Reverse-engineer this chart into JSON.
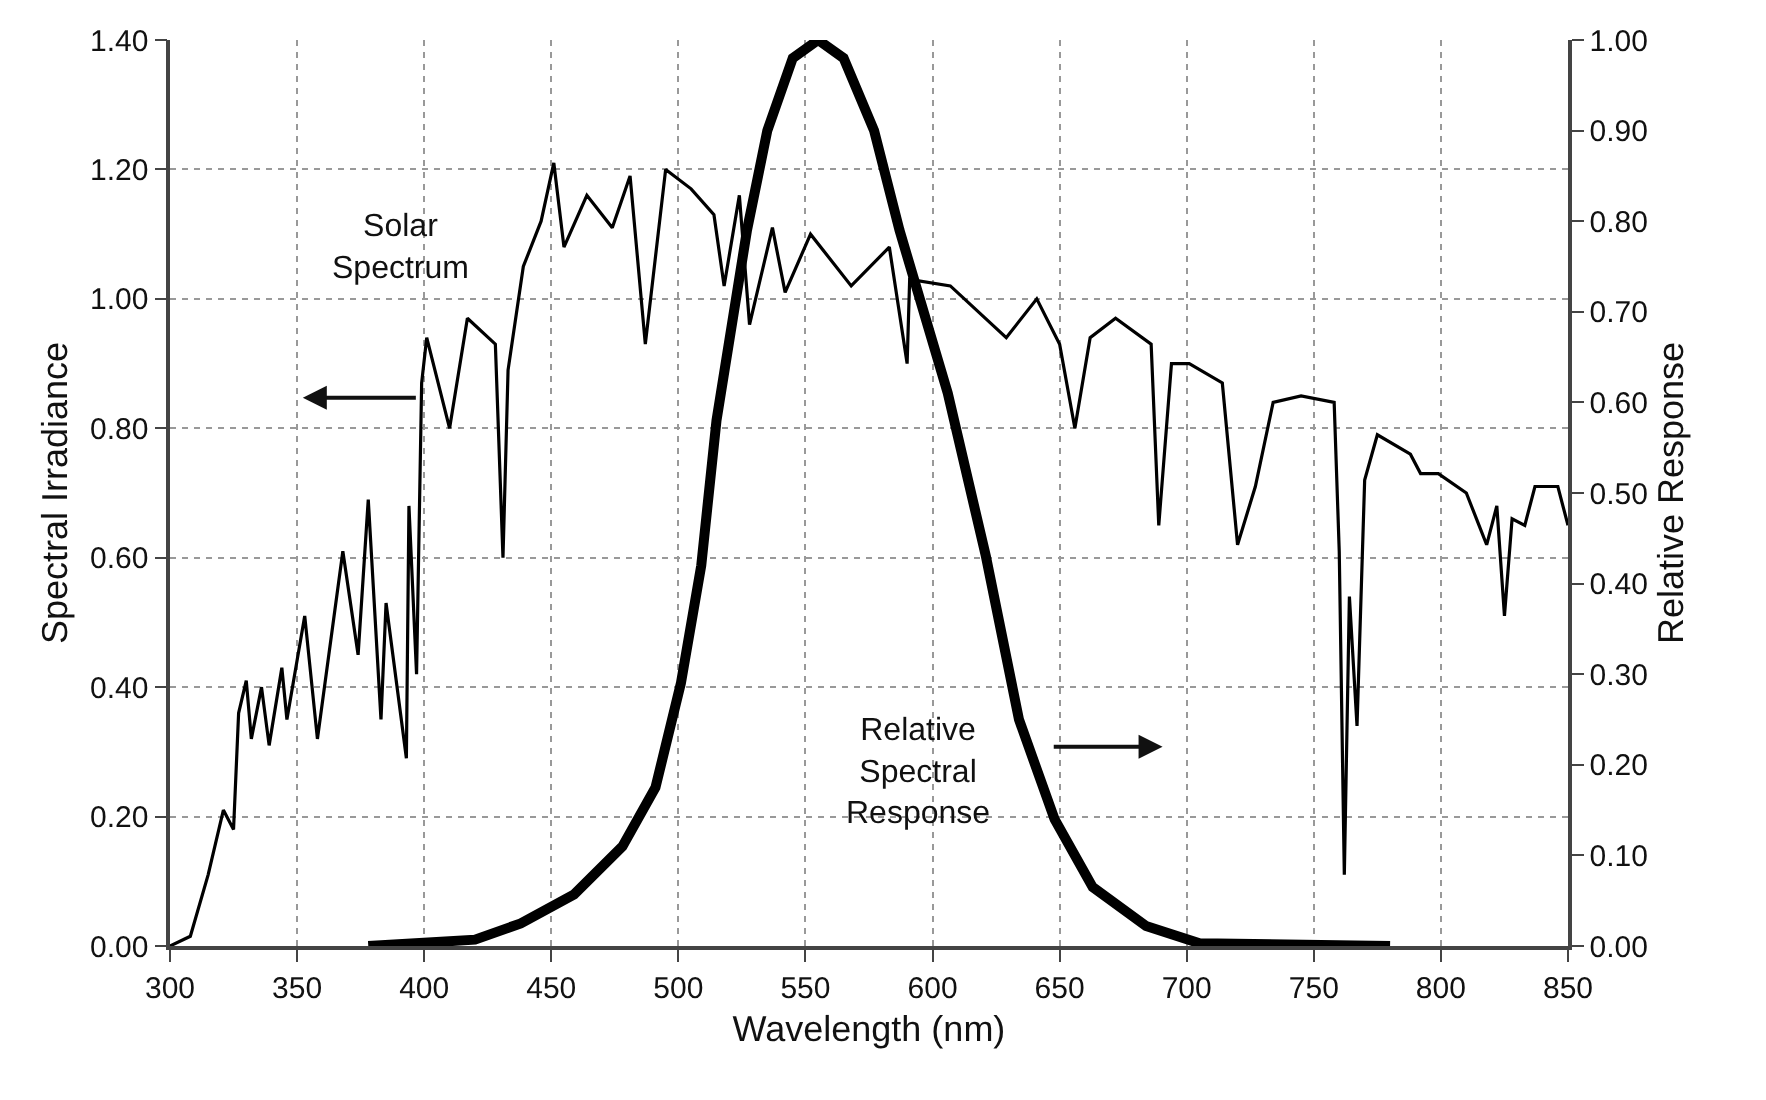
{
  "chart_data": {
    "type": "line",
    "xlabel": "Wavelength (nm)",
    "ylabel": "Spectral Irradiance",
    "y2label": "Relative Response",
    "xlim": [
      300,
      850
    ],
    "xticks": [
      300,
      350,
      400,
      450,
      500,
      550,
      600,
      650,
      700,
      750,
      800,
      850
    ],
    "ylim": [
      0,
      1.4
    ],
    "yticks": [
      {
        "value": 0,
        "label": "0.00"
      },
      {
        "value": 0.2,
        "label": "0.20"
      },
      {
        "value": 0.4,
        "label": "0.40"
      },
      {
        "value": 0.6,
        "label": "0.60"
      },
      {
        "value": 0.8,
        "label": "0.80"
      },
      {
        "value": 1.0,
        "label": "1.00"
      },
      {
        "value": 1.2,
        "label": "1.20"
      },
      {
        "value": 1.4,
        "label": "1.40"
      }
    ],
    "y2lim": [
      0,
      1.0
    ],
    "y2ticks": [
      {
        "value": 0,
        "label": "0.00"
      },
      {
        "value": 0.1,
        "label": "0.10"
      },
      {
        "value": 0.2,
        "label": "0.20"
      },
      {
        "value": 0.3,
        "label": "0.30"
      },
      {
        "value": 0.4,
        "label": "0.40"
      },
      {
        "value": 0.5,
        "label": "0.50"
      },
      {
        "value": 0.6,
        "label": "0.60"
      },
      {
        "value": 0.7,
        "label": "0.70"
      },
      {
        "value": 0.8,
        "label": "0.80"
      },
      {
        "value": 0.9,
        "label": "0.90"
      },
      {
        "value": 1.0,
        "label": "1.00"
      }
    ],
    "grid": true,
    "marker": "none",
    "line_style": "solid",
    "annotations": [
      "Solar\nSpectrum",
      "Relative\nSpectral\nResponse"
    ],
    "series": [
      {
        "color": "#000000",
        "x": [
          300,
          308,
          315,
          321,
          325,
          327,
          330,
          332,
          336,
          339,
          344,
          346,
          353,
          358,
          368,
          374,
          378,
          383,
          385,
          393,
          394,
          397,
          399,
          401,
          410,
          417,
          428,
          431,
          433,
          439,
          446,
          451,
          455,
          464,
          474,
          481,
          487,
          495,
          505,
          514,
          518,
          524,
          528,
          537,
          542,
          552,
          568,
          583,
          590,
          591,
          607,
          629,
          641,
          650,
          656,
          662,
          672,
          686,
          689,
          694,
          701,
          714,
          720,
          727,
          734,
          745,
          758,
          760,
          762,
          764,
          767,
          770,
          775,
          788,
          792,
          799,
          810,
          815,
          818,
          822,
          825,
          828,
          833,
          837,
          846,
          850
        ],
        "values": [
          0,
          0.015,
          0.11,
          0.21,
          0.18,
          0.36,
          0.41,
          0.32,
          0.4,
          0.31,
          0.43,
          0.35,
          0.51,
          0.32,
          0.61,
          0.45,
          0.69,
          0.35,
          0.53,
          0.29,
          0.68,
          0.42,
          0.87,
          0.94,
          0.8,
          0.97,
          0.93,
          0.6,
          0.89,
          1.05,
          1.12,
          1.21,
          1.08,
          1.16,
          1.11,
          1.19,
          0.93,
          1.2,
          1.17,
          1.13,
          1.02,
          1.16,
          0.96,
          1.11,
          1.01,
          1.1,
          1.02,
          1.08,
          0.9,
          1.03,
          1.02,
          0.94,
          1.0,
          0.93,
          0.8,
          0.94,
          0.97,
          0.93,
          0.65,
          0.9,
          0.9,
          0.87,
          0.62,
          0.71,
          0.84,
          0.85,
          0.84,
          0.61,
          0.11,
          0.54,
          0.34,
          0.72,
          0.79,
          0.76,
          0.73,
          0.73,
          0.7,
          0.65,
          0.62,
          0.68,
          0.51,
          0.66,
          0.65,
          0.71,
          0.71,
          0.65
        ]
      },
      {
        "color": "#000000",
        "axis": "y2",
        "x": [
          378,
          420,
          438,
          459,
          478,
          491,
          501,
          509,
          515,
          527,
          535,
          545,
          555,
          565,
          577,
          587,
          606,
          621,
          634,
          648,
          663,
          684,
          705,
          780
        ],
        "values": [
          0,
          0.007,
          0.025,
          0.057,
          0.11,
          0.175,
          0.29,
          0.42,
          0.58,
          0.79,
          0.9,
          0.98,
          1.0,
          0.98,
          0.9,
          0.79,
          0.61,
          0.43,
          0.25,
          0.14,
          0.065,
          0.022,
          0.003,
          0
        ]
      }
    ]
  }
}
